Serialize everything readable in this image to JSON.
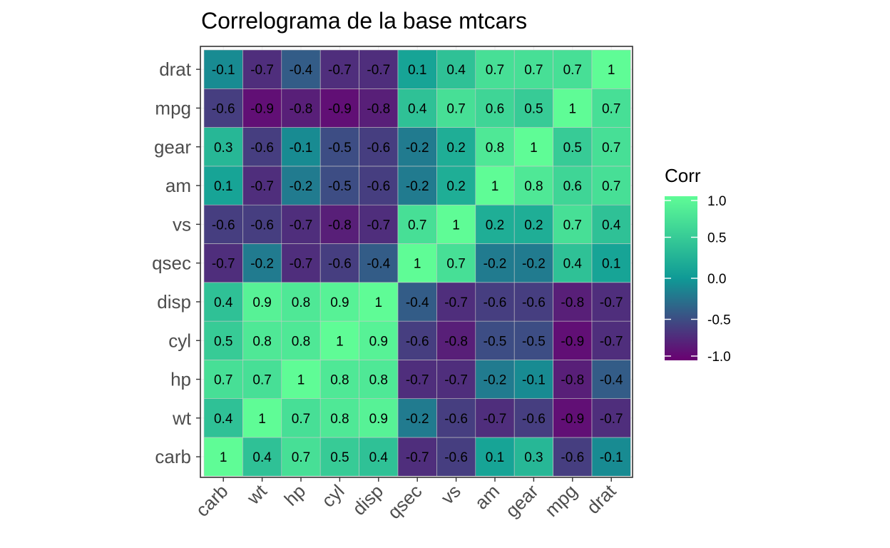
{
  "chart_data": {
    "type": "heatmap",
    "title": "Correlograma de la base mtcars",
    "x_categories": [
      "carb",
      "wt",
      "hp",
      "cyl",
      "disp",
      "qsec",
      "vs",
      "am",
      "gear",
      "mpg",
      "drat"
    ],
    "y_categories": [
      "carb",
      "wt",
      "hp",
      "cyl",
      "disp",
      "qsec",
      "vs",
      "am",
      "gear",
      "mpg",
      "drat"
    ],
    "value_labels": [
      [
        "1",
        "0.4",
        "0.7",
        "0.5",
        "0.4",
        "-0.7",
        "-0.6",
        "0.1",
        "0.3",
        "-0.6",
        "-0.1"
      ],
      [
        "0.4",
        "1",
        "0.7",
        "0.8",
        "0.9",
        "-0.2",
        "-0.6",
        "-0.7",
        "-0.6",
        "-0.9",
        "-0.7"
      ],
      [
        "0.7",
        "0.7",
        "1",
        "0.8",
        "0.8",
        "-0.7",
        "-0.7",
        "-0.2",
        "-0.1",
        "-0.8",
        "-0.4"
      ],
      [
        "0.5",
        "0.8",
        "0.8",
        "1",
        "0.9",
        "-0.6",
        "-0.8",
        "-0.5",
        "-0.5",
        "-0.9",
        "-0.7"
      ],
      [
        "0.4",
        "0.9",
        "0.8",
        "0.9",
        "1",
        "-0.4",
        "-0.7",
        "-0.6",
        "-0.6",
        "-0.8",
        "-0.7"
      ],
      [
        "-0.7",
        "-0.2",
        "-0.7",
        "-0.6",
        "-0.4",
        "1",
        "0.7",
        "-0.2",
        "-0.2",
        "0.4",
        "0.1"
      ],
      [
        "-0.6",
        "-0.6",
        "-0.7",
        "-0.8",
        "-0.7",
        "0.7",
        "1",
        "0.2",
        "0.2",
        "0.7",
        "0.4"
      ],
      [
        "0.1",
        "-0.7",
        "-0.2",
        "-0.5",
        "-0.6",
        "-0.2",
        "0.2",
        "1",
        "0.8",
        "0.6",
        "0.7"
      ],
      [
        "0.3",
        "-0.6",
        "-0.1",
        "-0.5",
        "-0.6",
        "-0.2",
        "0.2",
        "0.8",
        "1",
        "0.5",
        "0.7"
      ],
      [
        "-0.6",
        "-0.9",
        "-0.8",
        "-0.9",
        "-0.8",
        "0.4",
        "0.7",
        "0.6",
        "0.5",
        "1",
        "0.7"
      ],
      [
        "-0.1",
        "-0.7",
        "-0.4",
        "-0.7",
        "-0.7",
        "0.1",
        "0.4",
        "0.7",
        "0.7",
        "0.7",
        "1"
      ]
    ],
    "color_scale": {
      "low": "#6a0071",
      "mid": "#0f9a96",
      "high": "#5ffc96",
      "min": -1,
      "max": 1
    },
    "legend": {
      "title": "Corr",
      "ticks": [
        "1.0",
        "0.5",
        "0.0",
        "-0.5",
        "-1.0"
      ],
      "placement": "right"
    },
    "grid": true
  }
}
